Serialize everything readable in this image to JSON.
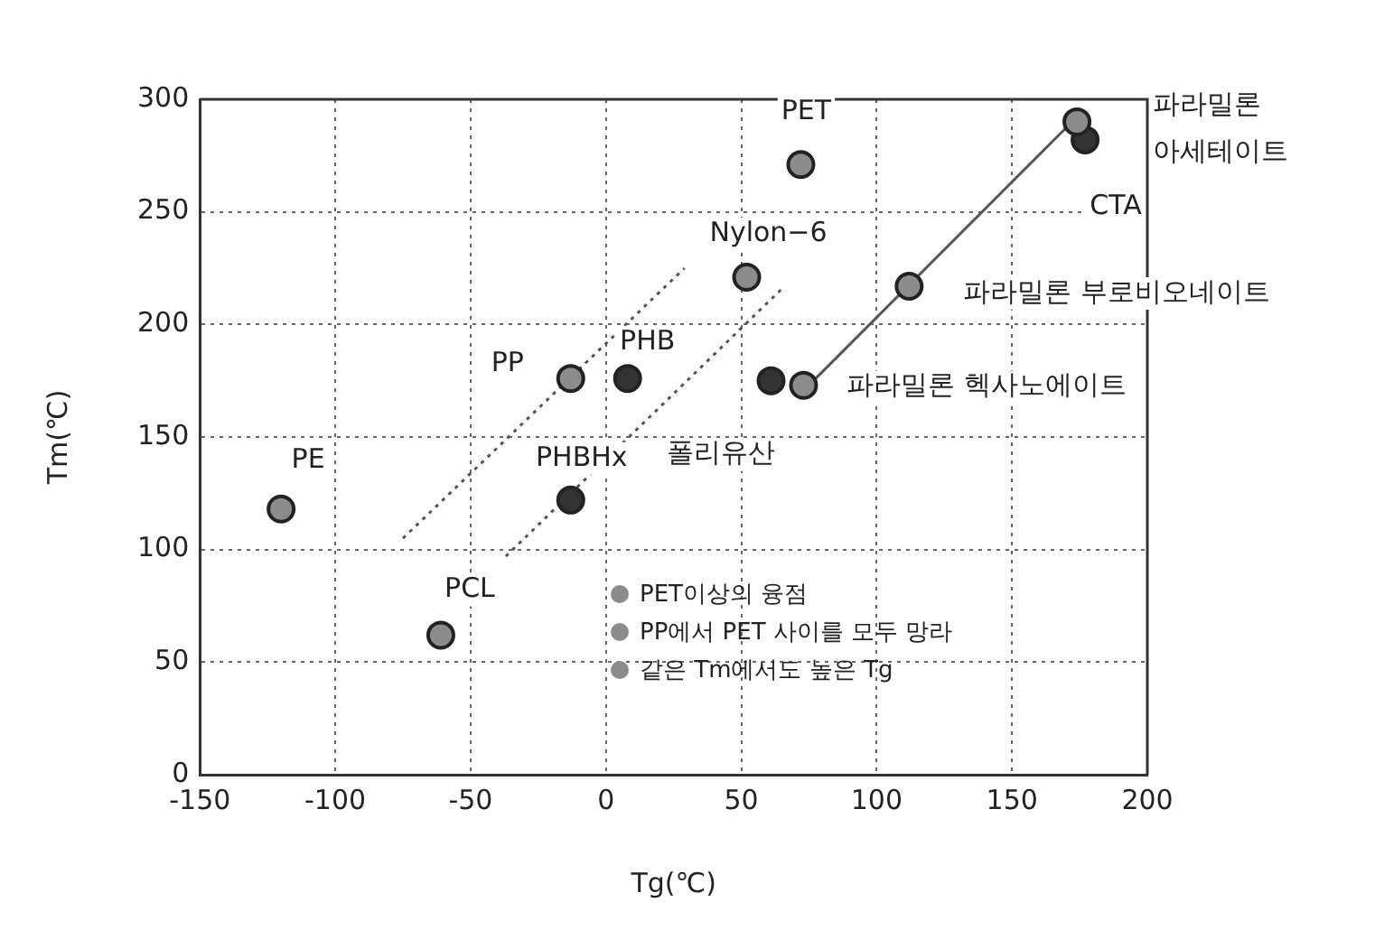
{
  "chart_data": {
    "type": "scatter",
    "xlabel": "Tg(℃)",
    "ylabel": "Tm(℃)",
    "xlim": [
      -150,
      200
    ],
    "xticks": [
      -150,
      -100,
      -50,
      0,
      50,
      100,
      150,
      200
    ],
    "ylim": [
      0,
      300
    ],
    "yticks": [
      0,
      50,
      100,
      150,
      200,
      250,
      300
    ],
    "grid": true,
    "legend": false,
    "series": [
      {
        "marker": "circle",
        "color": "#8c8c8c",
        "x": [
          -120,
          -61,
          -13,
          52,
          72,
          73,
          112,
          174
        ],
        "values": [
          118,
          62,
          176,
          221,
          271,
          173,
          217,
          290
        ]
      },
      {
        "marker": "circle",
        "color": "#333333",
        "x": [
          8,
          -13,
          61,
          177
        ],
        "values": [
          176,
          122,
          175,
          282
        ]
      },
      {
        "type": "line",
        "marker": "none",
        "line_style": "dotted",
        "color": "#555555",
        "x": [
          -75,
          29
        ],
        "values": [
          105,
          225
        ]
      },
      {
        "type": "line",
        "marker": "none",
        "line_style": "dotted",
        "color": "#555555",
        "x": [
          -37,
          66
        ],
        "values": [
          97,
          217
        ]
      },
      {
        "type": "line",
        "marker": "none",
        "line_style": "solid",
        "color": "#555555",
        "x": [
          75,
          173
        ],
        "values": [
          173,
          291
        ]
      }
    ],
    "annotations": [
      {
        "text": "PE",
        "x": -120,
        "y": 118
      },
      {
        "text": "PCL",
        "x": -61,
        "y": 62
      },
      {
        "text": "PP",
        "x": -13,
        "y": 176
      },
      {
        "text": "Nylon−6",
        "x": 52,
        "y": 221
      },
      {
        "text": "PET",
        "x": 72,
        "y": 271
      },
      {
        "text": "파라밀론 헥사노에이트",
        "x": 73,
        "y": 173
      },
      {
        "text": "파라밀론 부로비오네이트",
        "x": 112,
        "y": 217
      },
      {
        "text": "파라밀론\n아세테이트",
        "x": 174,
        "y": 290
      },
      {
        "text": "PHB",
        "x": 8,
        "y": 176
      },
      {
        "text": "PHBHx",
        "x": -13,
        "y": 122
      },
      {
        "text": "폴리유산",
        "x": 61,
        "y": 175
      },
      {
        "text": "CTA",
        "x": 177,
        "y": 282
      },
      "PET이상의 융점",
      "PP에서 PET 사이를 모두 망라",
      "같은 Tm에서도 높은 Tg"
    ]
  }
}
